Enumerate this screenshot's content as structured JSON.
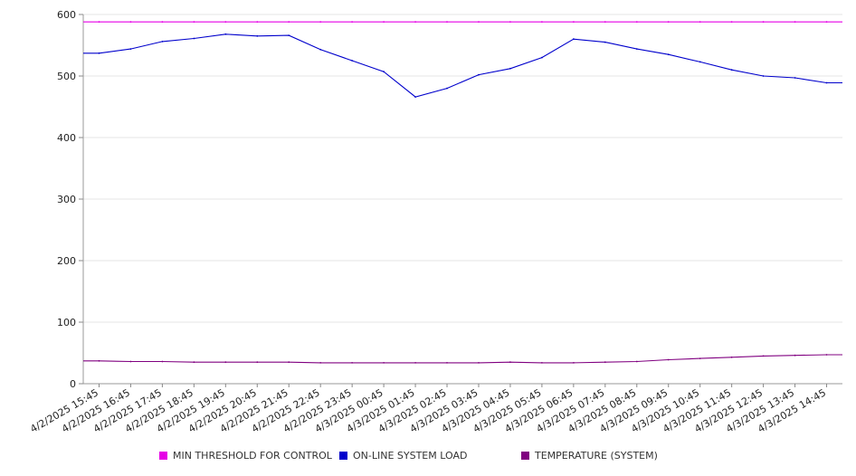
{
  "chart_data": {
    "type": "line",
    "title": "",
    "xlabel": "",
    "ylabel": "",
    "ylim": [
      0,
      600
    ],
    "yticks": [
      0,
      100,
      200,
      300,
      400,
      500,
      600
    ],
    "grid": true,
    "legend_position": "bottom",
    "categories": [
      "4/2/2025 15:45",
      "4/2/2025 16:45",
      "4/2/2025 17:45",
      "4/2/2025 18:45",
      "4/2/2025 19:45",
      "4/2/2025 20:45",
      "4/2/2025 21:45",
      "4/2/2025 22:45",
      "4/2/2025 23:45",
      "4/3/2025 00:45",
      "4/3/2025 01:45",
      "4/3/2025 02:45",
      "4/3/2025 03:45",
      "4/3/2025 04:45",
      "4/3/2025 05:45",
      "4/3/2025 06:45",
      "4/3/2025 07:45",
      "4/3/2025 08:45",
      "4/3/2025 09:45",
      "4/3/2025 10:45",
      "4/3/2025 11:45",
      "4/3/2025 12:45",
      "4/3/2025 13:45",
      "4/3/2025 14:45"
    ],
    "series": [
      {
        "name": "MIN THRESHOLD FOR CONTROL",
        "color": "#e600e6",
        "values": [
          588,
          588,
          588,
          588,
          588,
          588,
          588,
          588,
          588,
          588,
          588,
          588,
          588,
          588,
          588,
          588,
          588,
          588,
          588,
          588,
          588,
          588,
          588,
          588
        ]
      },
      {
        "name": "ON-LINE SYSTEM LOAD",
        "color": "#0000cc",
        "values": [
          537,
          544,
          556,
          561,
          568,
          565,
          566,
          543,
          525,
          507,
          466,
          480,
          502,
          512,
          530,
          560,
          555,
          544,
          535,
          523,
          510,
          500,
          497,
          489
        ]
      },
      {
        "name": "TEMPERATURE (SYSTEM)",
        "color": "#800080",
        "values": [
          37,
          36,
          36,
          35,
          35,
          35,
          35,
          34,
          34,
          34,
          34,
          34,
          34,
          35,
          34,
          34,
          35,
          36,
          39,
          41,
          43,
          45,
          46,
          47
        ]
      }
    ]
  }
}
